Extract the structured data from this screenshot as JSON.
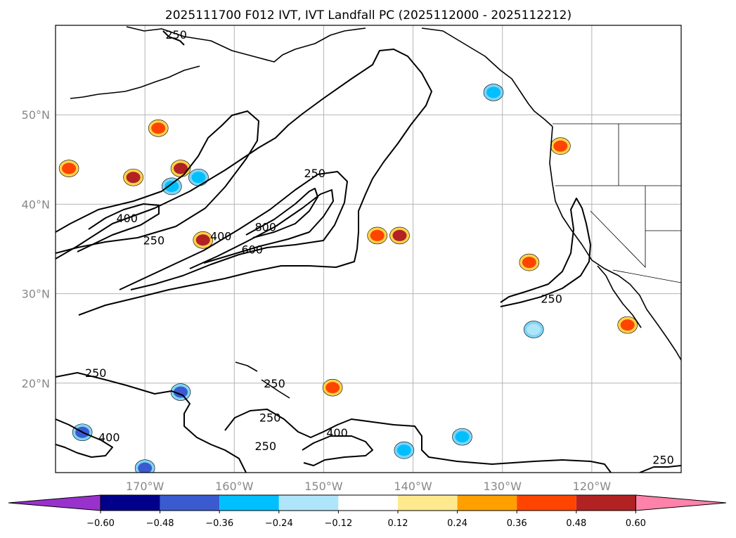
{
  "chart_data": {
    "type": "contour-map",
    "title": "2025111700 F012 IVT, IVT Landfall PC (2025112000 - 2025112212)",
    "lon_range": [
      -180,
      -110
    ],
    "lat_range": [
      10,
      60
    ],
    "lat_ticks": [
      {
        "value": 50,
        "label": "50°N"
      },
      {
        "value": 40,
        "label": "40°N"
      },
      {
        "value": 30,
        "label": "30°N"
      },
      {
        "value": 20,
        "label": "20°N"
      }
    ],
    "lon_ticks": [
      {
        "value": -170,
        "label": "170°W"
      },
      {
        "value": -160,
        "label": "160°W"
      },
      {
        "value": -150,
        "label": "150°W"
      },
      {
        "value": -140,
        "label": "140°W"
      },
      {
        "value": -130,
        "label": "130°W"
      },
      {
        "value": -120,
        "label": "120°W"
      }
    ],
    "ivt_contour_levels": [
      250,
      400,
      600,
      800
    ],
    "contour_labels": [
      {
        "text": "250",
        "lon": -166.5,
        "lat": 58.5
      },
      {
        "text": "250",
        "lon": -151.0,
        "lat": 43.0
      },
      {
        "text": "250",
        "lon": -169.0,
        "lat": 35.5
      },
      {
        "text": "400",
        "lon": -172.0,
        "lat": 38.0
      },
      {
        "text": "400",
        "lon": -161.5,
        "lat": 36.0
      },
      {
        "text": "800",
        "lon": -156.5,
        "lat": 37.0
      },
      {
        "text": "600",
        "lon": -158.0,
        "lat": 34.5
      },
      {
        "text": "250",
        "lon": -124.5,
        "lat": 29.0
      },
      {
        "text": "250",
        "lon": -175.5,
        "lat": 20.7
      },
      {
        "text": "250",
        "lon": -155.5,
        "lat": 19.5
      },
      {
        "text": "250",
        "lon": -156.0,
        "lat": 15.7
      },
      {
        "text": "250",
        "lon": -156.5,
        "lat": 12.5
      },
      {
        "text": "400",
        "lon": -174.0,
        "lat": 13.5
      },
      {
        "text": "400",
        "lon": -148.5,
        "lat": 14.0
      },
      {
        "text": "250",
        "lon": -112.0,
        "lat": 11.0
      }
    ],
    "colorbar": {
      "boundaries": [
        -0.6,
        -0.48,
        -0.36,
        -0.24,
        -0.12,
        0.12,
        0.24,
        0.36,
        0.48,
        0.6
      ],
      "tick_labels": [
        "−0.60",
        "−0.48",
        "−0.36",
        "−0.24",
        "−0.12",
        "0.12",
        "0.24",
        "0.36",
        "0.48",
        "0.60"
      ],
      "extend": "both",
      "colors": [
        "#9932cc",
        "#00008b",
        "#3a5bd0",
        "#00bfff",
        "#afe5fa",
        "#ffffff",
        "#fee98f",
        "#ff9f00",
        "#ff4400",
        "#b22222",
        "#ff82aa"
      ]
    },
    "pc_blobs": [
      {
        "lon": -171.3,
        "lat": 43.0,
        "value": 0.48
      },
      {
        "lon": -166.0,
        "lat": 44.0,
        "value": 0.48
      },
      {
        "lon": -163.5,
        "lat": 36.0,
        "value": 0.48
      },
      {
        "lon": -141.5,
        "lat": 36.5,
        "value": 0.48
      },
      {
        "lon": -144.0,
        "lat": 36.5,
        "value": 0.36
      },
      {
        "lon": -123.5,
        "lat": 46.5,
        "value": 0.36
      },
      {
        "lon": -127.0,
        "lat": 33.5,
        "value": 0.36
      },
      {
        "lon": -149.0,
        "lat": 19.5,
        "value": 0.36
      },
      {
        "lon": -116.0,
        "lat": 26.5,
        "value": 0.36
      },
      {
        "lon": -168.5,
        "lat": 48.5,
        "value": 0.36
      },
      {
        "lon": -178.5,
        "lat": 44.0,
        "value": 0.36
      },
      {
        "lon": -166.0,
        "lat": 19.0,
        "value": -0.48
      },
      {
        "lon": -177.0,
        "lat": 14.5,
        "value": -0.48
      },
      {
        "lon": -170.0,
        "lat": 10.5,
        "value": -0.48
      },
      {
        "lon": -141.0,
        "lat": 12.5,
        "value": -0.36
      },
      {
        "lon": -134.5,
        "lat": 14.0,
        "value": -0.36
      },
      {
        "lon": -131.0,
        "lat": 52.5,
        "value": -0.36
      },
      {
        "lon": -126.5,
        "lat": 26.0,
        "value": -0.24
      },
      {
        "lon": -167.0,
        "lat": 42.0,
        "value": -0.36
      },
      {
        "lon": -164.0,
        "lat": 43.0,
        "value": -0.36
      }
    ]
  }
}
